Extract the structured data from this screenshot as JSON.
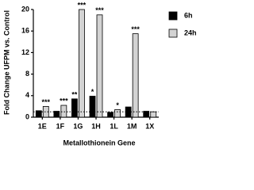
{
  "chart_data": {
    "type": "bar",
    "y_label": "Fold Change UFPM vs. Control",
    "x_label": "Metallothionein Gene",
    "categories": [
      "1E",
      "1F",
      "1G",
      "1H",
      "1L",
      "1M",
      "1X"
    ],
    "series": [
      {
        "name": "6h",
        "color": "#000000",
        "values": [
          1.2,
          1.1,
          3.4,
          3.9,
          0.9,
          1.9,
          1.1
        ],
        "significance": [
          null,
          null,
          "**",
          "*",
          null,
          null,
          null
        ]
      },
      {
        "name": "24h",
        "color": "#d3d3d3",
        "values": [
          2.0,
          2.2,
          20,
          19,
          1.4,
          15.5,
          1.0
        ],
        "significance": [
          "***",
          "***",
          "***",
          "***",
          "*",
          "***",
          null
        ]
      }
    ],
    "ylim": [
      0,
      20
    ],
    "yticks": [
      0,
      4,
      8,
      12,
      16,
      20
    ],
    "reference_line": 1,
    "legend": "top-right"
  }
}
